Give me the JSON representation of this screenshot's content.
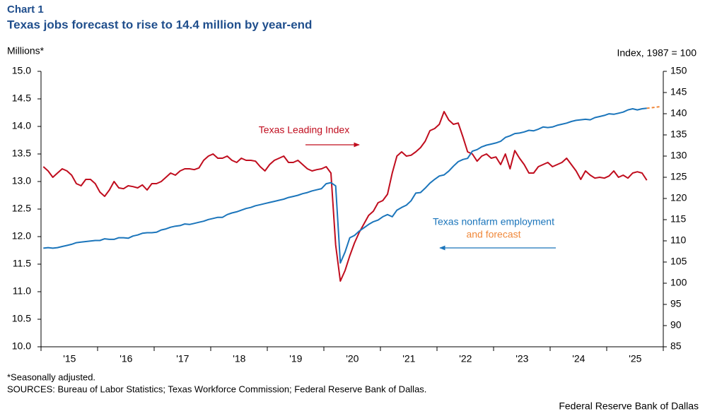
{
  "chart_data": {
    "type": "line",
    "title": "Chart 1",
    "subtitle": "Texas jobs forecast to rise to 14.4 million by year-end",
    "y_label": "Millions*",
    "y2_label": "Index,  1987 = 100",
    "footnote": "*Seasonally adjusted.",
    "source": "SOURCES: Bureau of Labor Statistics; Texas Workforce Commission; Federal Reserve Bank of Dallas.",
    "credit": "Federal Reserve Bank of Dallas",
    "categories": [
      null,
      null,
      null,
      null,
      null,
      null,
      "'15",
      null,
      null,
      null,
      null,
      null,
      null,
      null,
      null,
      null,
      null,
      null,
      "'16",
      null,
      null,
      null,
      null,
      null,
      null,
      null,
      null,
      null,
      null,
      null,
      "'17",
      null,
      null,
      null,
      null,
      null,
      null,
      null,
      null,
      null,
      null,
      null,
      "'18",
      null,
      null,
      null,
      null,
      null,
      null,
      null,
      null,
      null,
      null,
      null,
      "'19",
      null,
      null,
      null,
      null,
      null,
      null,
      null,
      null,
      null,
      null,
      null,
      "'20",
      null,
      null,
      null,
      null,
      null,
      null,
      null,
      null,
      null,
      null,
      null,
      "'21",
      null,
      null,
      null,
      null,
      null,
      null,
      null,
      null,
      null,
      null,
      null,
      "'22",
      null,
      null,
      null,
      null,
      null,
      null,
      null,
      null,
      null,
      null,
      null,
      "'23",
      null,
      null,
      null,
      null,
      null,
      null,
      null,
      null,
      null,
      null,
      null,
      "'24",
      null,
      null,
      null,
      null,
      null,
      null,
      null,
      null,
      null,
      null,
      null,
      "'25",
      null,
      null,
      null,
      null,
      null
    ],
    "ylim": [
      10,
      15
    ],
    "yticks": [
      {
        "value": 10,
        "label": "10.0"
      },
      10.5,
      {
        "value": 11,
        "label": "11.0"
      },
      11.5,
      {
        "value": 12,
        "label": "12.0"
      },
      12.5,
      {
        "value": 13,
        "label": "13.0"
      },
      13.5,
      {
        "value": 14,
        "label": "14.0"
      },
      14.5,
      {
        "value": 15,
        "label": "15.0"
      }
    ],
    "y2lim": [
      85,
      150
    ],
    "y2ticks": [
      85,
      90,
      95,
      100,
      105,
      110,
      115,
      120,
      125,
      130,
      135,
      140,
      145,
      150
    ],
    "grid": false,
    "series": [
      {
        "name": "Texas Leading Index",
        "color": "#c00d1e",
        "axis": "y2",
        "dashed": false,
        "values": [
          127.5,
          126.5,
          125,
          126,
          127,
          126.5,
          125.5,
          123.5,
          123,
          124.5,
          124.5,
          123.5,
          121.5,
          120.5,
          122,
          124,
          122.5,
          122.3,
          123,
          122.8,
          122.5,
          123.2,
          122,
          123.5,
          123.5,
          124,
          125,
          126,
          125.5,
          126.5,
          127,
          127,
          126.8,
          127.2,
          129,
          130,
          130.5,
          129.5,
          129.5,
          130,
          129,
          128.5,
          129.5,
          129,
          129,
          128.8,
          127.5,
          126.5,
          128,
          129,
          129.5,
          130,
          128.5,
          128.5,
          129,
          128,
          127,
          126.5,
          126.8,
          127,
          127.5,
          126,
          109,
          100.5,
          103,
          106.5,
          109.5,
          112,
          114,
          116,
          117,
          119,
          119.5,
          121,
          126,
          130,
          131,
          130,
          130.2,
          131,
          132,
          133.5,
          136,
          136.5,
          137.5,
          140.5,
          138.5,
          137.5,
          137.8,
          134.5,
          131,
          130.5,
          128.8,
          130,
          130.5,
          129.5,
          129.8,
          128,
          130.5,
          127,
          131.3,
          129.5,
          128,
          126,
          126,
          127.5,
          128,
          128.5,
          127.5,
          128,
          128.5,
          129.5,
          128,
          126.5,
          124.5,
          126.5,
          125.5,
          124.8,
          125,
          124.8,
          125.3,
          126.5,
          125,
          125.5,
          124.8,
          126,
          126.3,
          126,
          124.3,
          null,
          null,
          null
        ]
      },
      {
        "name": "Texas nonfarm employment",
        "color": "#1b75bb",
        "axis": "y",
        "dashed": false,
        "values": [
          11.79,
          11.8,
          11.79,
          11.8,
          11.82,
          11.84,
          11.86,
          11.89,
          11.9,
          11.91,
          11.92,
          11.93,
          11.93,
          11.96,
          11.95,
          11.95,
          11.98,
          11.98,
          11.97,
          12.01,
          12.03,
          12.06,
          12.07,
          12.07,
          12.08,
          12.12,
          12.14,
          12.17,
          12.19,
          12.2,
          12.23,
          12.22,
          12.24,
          12.26,
          12.28,
          12.31,
          12.33,
          12.35,
          12.35,
          12.4,
          12.43,
          12.45,
          12.48,
          12.51,
          12.53,
          12.56,
          12.58,
          12.6,
          12.62,
          12.64,
          12.66,
          12.68,
          12.71,
          12.73,
          12.75,
          12.78,
          12.8,
          12.83,
          12.85,
          12.87,
          12.96,
          12.98,
          12.92,
          11.52,
          11.72,
          11.98,
          12.02,
          12.1,
          12.16,
          12.22,
          12.27,
          12.3,
          12.36,
          12.4,
          12.36,
          12.48,
          12.53,
          12.57,
          12.65,
          12.79,
          12.8,
          12.88,
          12.97,
          13.04,
          13.1,
          13.12,
          13.19,
          13.28,
          13.36,
          13.4,
          13.42,
          13.55,
          13.58,
          13.63,
          13.66,
          13.68,
          13.7,
          13.73,
          13.8,
          13.83,
          13.87,
          13.88,
          13.9,
          13.93,
          13.92,
          13.95,
          13.99,
          13.98,
          13.99,
          14.02,
          14.04,
          14.06,
          14.09,
          14.11,
          14.12,
          14.13,
          14.12,
          14.16,
          14.18,
          14.2,
          14.23,
          14.22,
          14.24,
          14.26,
          14.3,
          14.32,
          14.3,
          14.32,
          14.33,
          null,
          null,
          null
        ]
      },
      {
        "name": "and forecast",
        "color": "#f0883a",
        "axis": "y",
        "dashed": true,
        "values": [
          null,
          null,
          null,
          null,
          null,
          null,
          null,
          null,
          null,
          null,
          null,
          null,
          null,
          null,
          null,
          null,
          null,
          null,
          null,
          null,
          null,
          null,
          null,
          null,
          null,
          null,
          null,
          null,
          null,
          null,
          null,
          null,
          null,
          null,
          null,
          null,
          null,
          null,
          null,
          null,
          null,
          null,
          null,
          null,
          null,
          null,
          null,
          null,
          null,
          null,
          null,
          null,
          null,
          null,
          null,
          null,
          null,
          null,
          null,
          null,
          null,
          null,
          null,
          null,
          null,
          null,
          null,
          null,
          null,
          null,
          null,
          null,
          null,
          null,
          null,
          null,
          null,
          null,
          null,
          null,
          null,
          null,
          null,
          null,
          null,
          null,
          null,
          null,
          null,
          null,
          null,
          null,
          null,
          null,
          null,
          null,
          null,
          null,
          null,
          null,
          null,
          null,
          null,
          null,
          null,
          null,
          null,
          null,
          null,
          null,
          null,
          null,
          null,
          null,
          null,
          null,
          null,
          null,
          null,
          null,
          null,
          null,
          null,
          null,
          null,
          null,
          null,
          null,
          14.33,
          14.34,
          14.35,
          14.36
        ]
      }
    ]
  }
}
